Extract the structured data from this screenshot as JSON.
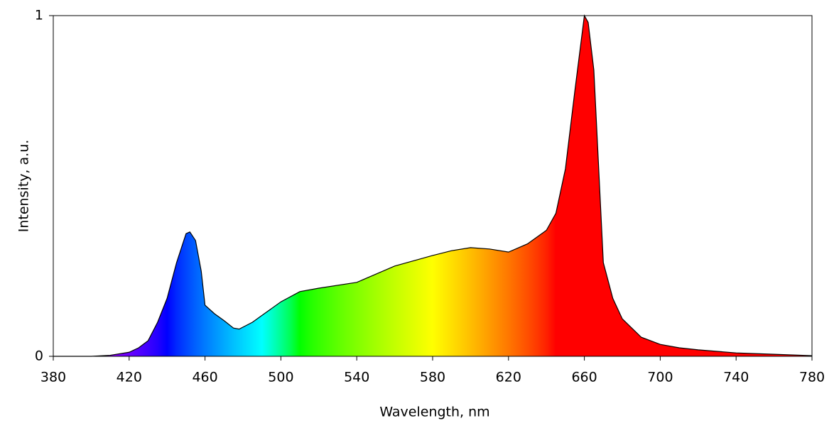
{
  "chart_data": {
    "type": "area",
    "x_label": "Wavelength, nm",
    "y_label": "Intensity, a.u.",
    "x": [
      380,
      400,
      410,
      420,
      425,
      430,
      435,
      440,
      445,
      450,
      452,
      455,
      458,
      460,
      465,
      470,
      475,
      478,
      485,
      490,
      500,
      510,
      520,
      540,
      560,
      580,
      590,
      600,
      610,
      620,
      630,
      640,
      645,
      650,
      655,
      660,
      662,
      665,
      670,
      675,
      680,
      690,
      700,
      710,
      720,
      740,
      760,
      780
    ],
    "values": [
      0,
      0,
      0.003,
      0.012,
      0.025,
      0.046,
      0.1,
      0.17,
      0.275,
      0.36,
      0.365,
      0.34,
      0.25,
      0.15,
      0.125,
      0.105,
      0.083,
      0.08,
      0.1,
      0.12,
      0.16,
      0.19,
      0.2,
      0.217,
      0.265,
      0.296,
      0.31,
      0.319,
      0.315,
      0.306,
      0.33,
      0.37,
      0.42,
      0.55,
      0.78,
      1,
      0.98,
      0.84,
      0.275,
      0.17,
      0.11,
      0.056,
      0.035,
      0.025,
      0.019,
      0.01,
      0.006,
      0.002
    ],
    "xlim": [
      380,
      780
    ],
    "ylim": [
      0,
      1
    ],
    "xticks": [
      380,
      420,
      460,
      500,
      540,
      580,
      620,
      660,
      700,
      740,
      780
    ],
    "yticks": [
      0,
      1
    ],
    "outline_color": "#000000"
  }
}
